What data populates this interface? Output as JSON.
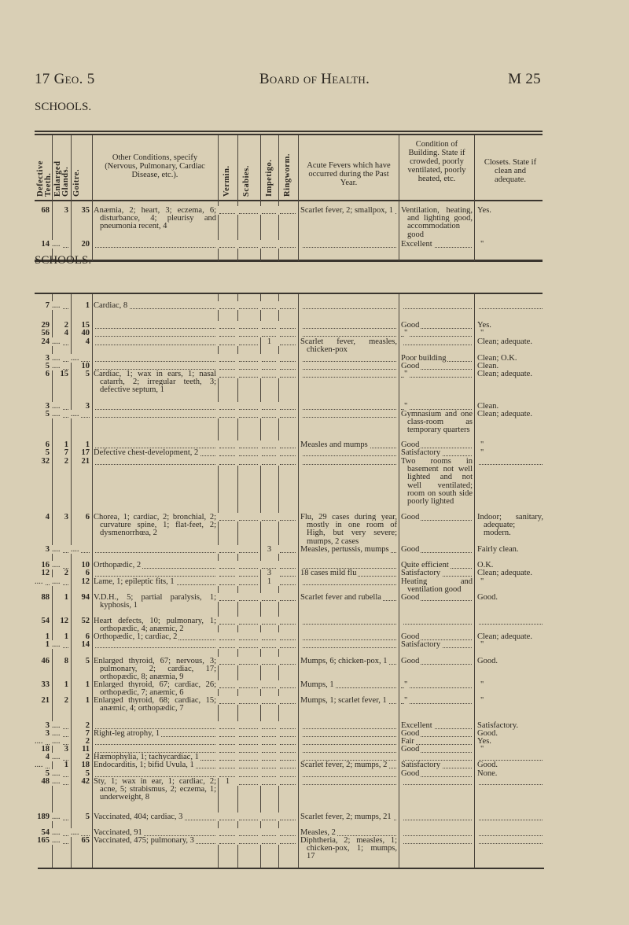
{
  "header": {
    "left": "17 Geo. 5",
    "center": "Board of Health.",
    "right": "M 25"
  },
  "section1_title": "SCHOOLS.",
  "section2_title": "SCHOOLS.",
  "columns": {
    "teeth": "Defective Teeth.",
    "glands": "Enlarged Glands.",
    "goitre": "Goitre.",
    "other": "Other Conditions, specify (Nervous, Pulmonary, Cardiac Disease, etc.).",
    "vermin": "Vermin.",
    "scabies": "Scabies.",
    "impetigo": "Impetigo.",
    "ringworm": "Ringworm.",
    "fevers": "Acute Fevers which have occurred during the Past Year.",
    "building": "Condition of Building. State if crowded, poorly ventilated, poorly heated, etc.",
    "closets": "Closets. State if clean and adequate."
  },
  "table1": {
    "rows": [
      [
        "68",
        "3",
        "35",
        "Anæmia, 2; heart, 3; eczema, 6; disturbance, 4; pleurisy and pneumonia recent, 4",
        "",
        "",
        "",
        "",
        "Scarlet fever, 2; smallpox, 1",
        "Ventilation, heating, and lighting good, accommodation good",
        "Yes."
      ],
      [
        "14",
        "....",
        "20",
        "",
        "",
        "",
        "",
        "",
        "",
        "Excellent",
        "\""
      ]
    ]
  },
  "table2": {
    "rows": [
      [
        "7",
        "....",
        "1",
        "Cardiac, 8",
        "",
        "",
        "",
        "",
        "",
        "",
        ""
      ],
      [
        "29",
        "2",
        "15",
        "",
        "",
        "",
        "",
        "",
        "",
        "Good",
        "Yes."
      ],
      [
        "56",
        "4",
        "40",
        "",
        "",
        "",
        "",
        "",
        "",
        "\"",
        "\""
      ],
      [
        "24",
        "....",
        "4",
        "",
        "",
        "",
        "1",
        "",
        "Scarlet fever, measles, chicken-pox",
        "",
        "Clean; adequate."
      ],
      [
        "3",
        "....",
        "....",
        "",
        "",
        "",
        "",
        "",
        "",
        "Poor building",
        "Clean; O.K."
      ],
      [
        "5",
        "....",
        "10",
        "",
        "",
        "",
        "",
        "",
        "",
        "Good",
        "Clean."
      ],
      [
        "6",
        "15",
        "5",
        "Cardiac, 1; wax in ears, 1; nasal catarrh, 2; irregular teeth, 3; defective septum, 1",
        "",
        "",
        "",
        "",
        "",
        "\"",
        "Clean; adequate."
      ],
      [
        "3",
        "....",
        "3",
        "",
        "",
        "",
        "",
        "",
        "",
        "\"",
        "Clean."
      ],
      [
        "5",
        "....",
        "....",
        "",
        "",
        "",
        "",
        "",
        "",
        "Gymnasium and one class-room as temporary quarters",
        "Clean; adequate."
      ],
      [
        "6",
        "1",
        "1",
        "",
        "",
        "",
        "",
        "",
        "Measles and mumps",
        "Good",
        "\""
      ],
      [
        "5",
        "7",
        "17",
        "Defective chest-development, 2",
        "",
        "",
        "",
        "",
        "",
        "Satisfactory",
        "\""
      ],
      [
        "32",
        "2",
        "21",
        "",
        "",
        "",
        "",
        "",
        "",
        "Two rooms in basement not well lighted and not well ventilated; room on south side poorly lighted",
        ""
      ],
      [
        "4",
        "3",
        "6",
        "Chorea, 1; cardiac, 2; bronchial, 2; curvature spine, 1; flat-feet, 2; dysmenorrhœa, 2",
        "",
        "",
        "",
        "",
        "Flu, 29 cases during year, mostly in one room of High, but very severe; mumps, 2 cases",
        "Good",
        "Indoor; sanitary, adequate; modern."
      ],
      [
        "3",
        "....",
        "....",
        "",
        "",
        "",
        "3",
        "",
        "Measles, pertussis, mumps",
        "Good",
        "Fairly clean."
      ],
      [
        "16",
        "....",
        "10",
        "Orthopædic, 2",
        "",
        "",
        "",
        "",
        "",
        "Quite efficient",
        "O.K."
      ],
      [
        "12",
        "2",
        "6",
        "",
        "",
        "",
        "3",
        "",
        "18 cases mild flu",
        "Satisfactory",
        "Clean; adequate."
      ],
      [
        "....",
        "....",
        "12",
        "Lame, 1; epileptic fits, 1",
        "",
        "",
        "1",
        "",
        "",
        "Heating and ventilation good",
        "\""
      ],
      [
        "88",
        "1",
        "94",
        "V.D.H., 5; partial paralysis, 1; kyphosis, 1",
        "",
        "",
        "",
        "",
        "Scarlet fever and rubella",
        "Good",
        "Good."
      ],
      [
        "54",
        "12",
        "52",
        "Heart defects, 10; pulmonary, 1; orthopædic, 4; anæmic, 2",
        "",
        "",
        "",
        "",
        "",
        "",
        ""
      ],
      [
        "1",
        "1",
        "6",
        "Orthopædic, 1; cardiac, 2",
        "",
        "",
        "",
        "",
        "",
        "Good",
        "Clean; adequate."
      ],
      [
        "1",
        "....",
        "14",
        "",
        "",
        "",
        "",
        "",
        "",
        "Satisfactory",
        "\""
      ],
      [
        "46",
        "8",
        "5",
        "Enlarged thyroid, 67; nervous, 3; pulmonary, 2; cardiac, 17; orthopædic, 8; anæmia, 9",
        "",
        "",
        "",
        "",
        "Mumps, 6; chicken-pox, 1",
        "Good",
        "Good."
      ],
      [
        "33",
        "1",
        "1",
        "Enlarged thyroid, 67; cardiac, 26; orthopædic, 7; anæmic, 6",
        "",
        "",
        "",
        "",
        "Mumps, 1",
        "\"",
        "\""
      ],
      [
        "21",
        "2",
        "1",
        "Enlarged thyroid, 68; cardiac, 15; anæmic, 4; orthopædic, 7",
        "",
        "",
        "",
        "",
        "Mumps, 1; scarlet fever, 1",
        "\"",
        "\""
      ],
      [
        "3",
        "....",
        "2",
        "",
        "",
        "",
        "",
        "",
        "",
        "Excellent",
        "Satisfactory."
      ],
      [
        "3",
        "....",
        "7",
        "Right-leg atrophy, 1",
        "",
        "",
        "",
        "",
        "",
        "Good",
        "Good."
      ],
      [
        "....",
        "....",
        "2",
        "",
        "",
        "",
        "",
        "",
        "",
        "Fair",
        "Yes."
      ],
      [
        "18",
        "3",
        "11",
        "",
        "",
        "",
        "",
        "",
        "",
        "Good",
        "\""
      ],
      [
        "4",
        "....",
        "2",
        "Hæmophylia, 1; tachycardiac, 1",
        "",
        "",
        "",
        "",
        "",
        "",
        ""
      ],
      [
        "....",
        "1",
        "18",
        "Endocarditis, 1; bifid Uvula, 1",
        "",
        "",
        "",
        "",
        "Scarlet fever, 2; mumps, 2",
        "Satisfactory",
        "Good."
      ],
      [
        "5",
        "....",
        "5",
        "",
        "",
        "",
        "",
        "",
        "",
        "Good",
        "None."
      ],
      [
        "48",
        "....",
        "42",
        "Sty, 1; wax in ear, 1; cardiac, 2; acne, 5; strabismus, 2; eczema, 1; underweight, 8",
        "1",
        "",
        "",
        "",
        "",
        "",
        ""
      ],
      [
        "189",
        "....",
        "5",
        "Vaccinated, 404; cardiac, 3",
        "",
        "",
        "",
        "",
        "Scarlet fever, 2; mumps, 21",
        "",
        ""
      ],
      [
        "54",
        "....",
        "....",
        "Vaccinated, 91",
        "",
        "",
        "",
        "",
        "Measles, 2",
        "",
        ""
      ],
      [
        "165",
        "....",
        "65",
        "Vaccinated, 475; pulmonary, 3",
        "",
        "",
        "",
        "",
        "Diphtheria, 2; measles, 1; chicken-pox, 1; mumps, 17",
        "",
        ""
      ]
    ]
  }
}
